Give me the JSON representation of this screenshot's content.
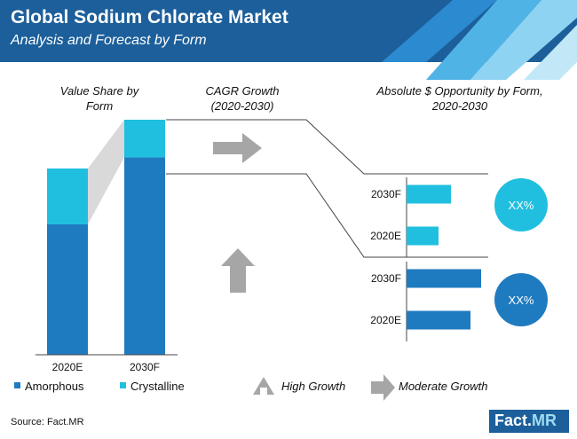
{
  "header": {
    "title": "Global Sodium Chlorate Market",
    "subtitle": "Analysis and Forecast by Form"
  },
  "sections": {
    "value_share": "Value Share by Form",
    "cagr": "CAGR Growth (2020-2030)",
    "opportunity": "Absolute $ Opportunity by Form, 2020-2030"
  },
  "legend": {
    "growth_high": "High Growth",
    "growth_moderate": "Moderate Growth"
  },
  "source": "Source: Fact.MR",
  "logo": {
    "main": "Fact.",
    "accent": "MR"
  },
  "colors": {
    "amorphous": "#1f7bbf",
    "crystalline": "#20bfdf",
    "header_bg": "#1c5f9a",
    "arrow": "#a6a6a6"
  },
  "chart_data": [
    {
      "type": "bar",
      "stacked": true,
      "title": "Value Share by Form",
      "categories": [
        "2020E",
        "2030F"
      ],
      "ylim": [
        0,
        100
      ],
      "series": [
        {
          "name": "Amorphous",
          "values": [
            70,
            84
          ]
        },
        {
          "name": "Crystalline",
          "values": [
            30,
            16
          ]
        }
      ]
    },
    {
      "type": "bar",
      "orientation": "horizontal",
      "title": "Absolute $ Opportunity by Form, 2020-2030",
      "panels": [
        {
          "series": "Crystalline",
          "categories": [
            "2030F",
            "2020E"
          ],
          "values": [
            50,
            36
          ],
          "cagr_label": "XX%",
          "growth": "Moderate Growth"
        },
        {
          "series": "Amorphous",
          "categories": [
            "2030F",
            "2020E"
          ],
          "values": [
            84,
            72
          ],
          "cagr_label": "XX%",
          "growth": "High Growth"
        }
      ]
    }
  ]
}
